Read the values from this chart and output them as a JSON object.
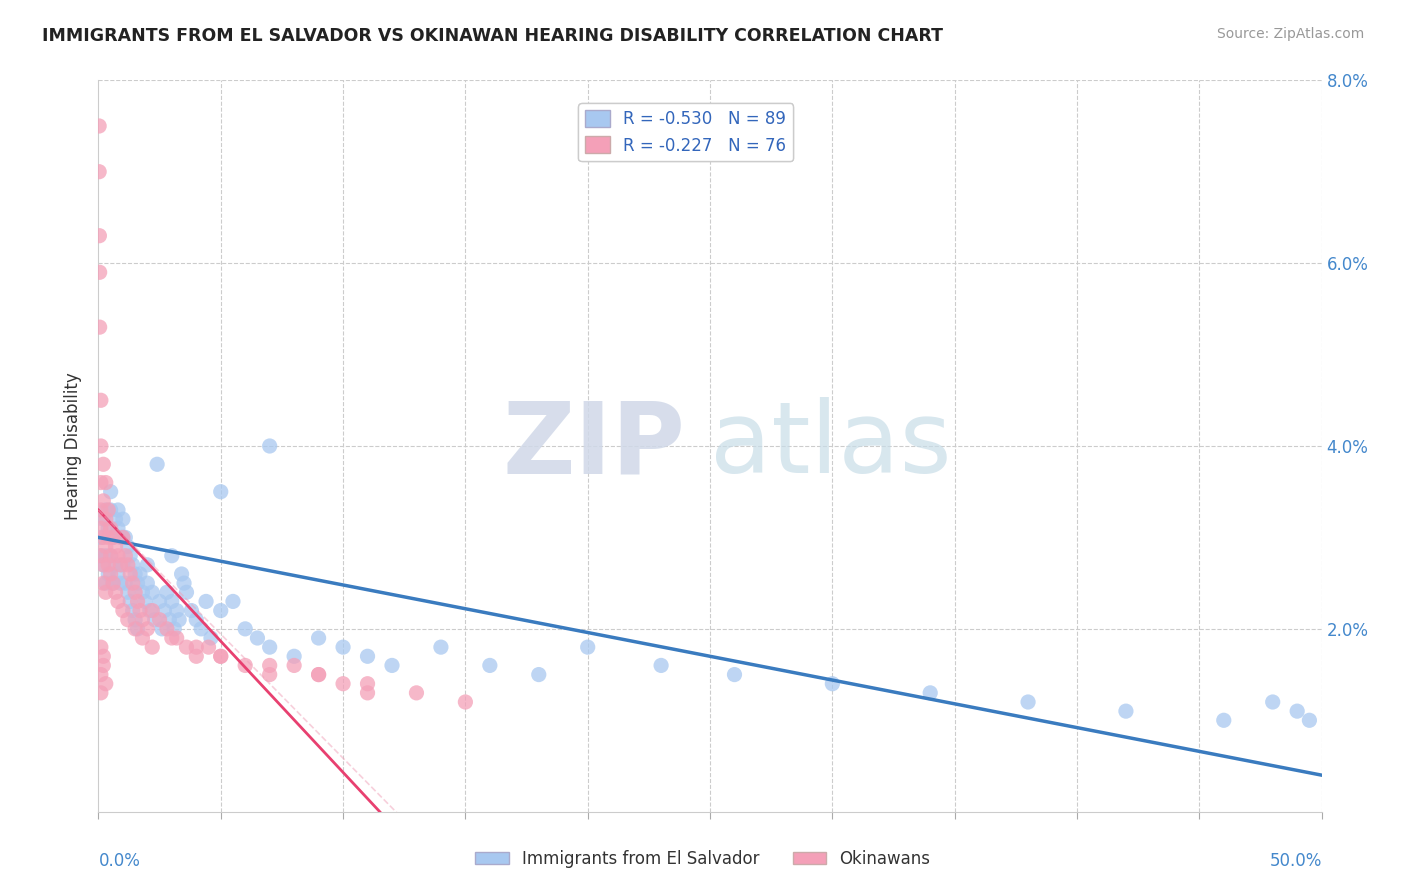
{
  "title": "IMMIGRANTS FROM EL SALVADOR VS OKINAWAN HEARING DISABILITY CORRELATION CHART",
  "source": "Source: ZipAtlas.com",
  "ylabel": "Hearing Disability",
  "xmin": 0.0,
  "xmax": 0.5,
  "ymin": 0.0,
  "ymax": 0.08,
  "yticks": [
    0.0,
    0.02,
    0.04,
    0.06,
    0.08
  ],
  "yticklabels_right": [
    "",
    "2.0%",
    "4.0%",
    "6.0%",
    "8.0%"
  ],
  "legend1_label": "R = -0.530   N = 89",
  "legend2_label": "R = -0.227   N = 76",
  "legend_bottom1": "Immigrants from El Salvador",
  "legend_bottom2": "Okinawans",
  "color_blue": "#a8c8f0",
  "color_pink": "#f4a0b8",
  "line_color_blue": "#3a7bbf",
  "line_color_pink": "#e84070",
  "line_color_pink_dashed": "#f0a0b8",
  "watermark_zip": "ZIP",
  "watermark_atlas": "atlas",
  "blue_scatter_x": [
    0.001,
    0.001,
    0.002,
    0.002,
    0.003,
    0.003,
    0.003,
    0.004,
    0.004,
    0.005,
    0.005,
    0.005,
    0.006,
    0.006,
    0.007,
    0.007,
    0.008,
    0.008,
    0.009,
    0.009,
    0.01,
    0.01,
    0.011,
    0.011,
    0.012,
    0.012,
    0.013,
    0.013,
    0.014,
    0.014,
    0.015,
    0.015,
    0.016,
    0.016,
    0.017,
    0.018,
    0.019,
    0.02,
    0.021,
    0.022,
    0.023,
    0.024,
    0.025,
    0.026,
    0.027,
    0.028,
    0.029,
    0.03,
    0.031,
    0.032,
    0.033,
    0.034,
    0.035,
    0.036,
    0.038,
    0.04,
    0.042,
    0.044,
    0.046,
    0.05,
    0.055,
    0.06,
    0.065,
    0.07,
    0.08,
    0.09,
    0.1,
    0.11,
    0.12,
    0.14,
    0.16,
    0.18,
    0.2,
    0.23,
    0.26,
    0.3,
    0.34,
    0.38,
    0.42,
    0.46,
    0.48,
    0.49,
    0.495,
    0.07,
    0.05,
    0.03,
    0.02,
    0.01,
    0.008
  ],
  "blue_scatter_y": [
    0.03,
    0.028,
    0.032,
    0.027,
    0.033,
    0.028,
    0.025,
    0.031,
    0.026,
    0.033,
    0.028,
    0.035,
    0.03,
    0.025,
    0.032,
    0.027,
    0.031,
    0.026,
    0.03,
    0.025,
    0.032,
    0.027,
    0.03,
    0.025,
    0.029,
    0.024,
    0.028,
    0.023,
    0.027,
    0.022,
    0.026,
    0.021,
    0.025,
    0.02,
    0.026,
    0.024,
    0.023,
    0.025,
    0.022,
    0.024,
    0.021,
    0.038,
    0.023,
    0.02,
    0.022,
    0.024,
    0.021,
    0.023,
    0.02,
    0.022,
    0.021,
    0.026,
    0.025,
    0.024,
    0.022,
    0.021,
    0.02,
    0.023,
    0.019,
    0.022,
    0.023,
    0.02,
    0.019,
    0.018,
    0.017,
    0.019,
    0.018,
    0.017,
    0.016,
    0.018,
    0.016,
    0.015,
    0.018,
    0.016,
    0.015,
    0.014,
    0.013,
    0.012,
    0.011,
    0.01,
    0.012,
    0.011,
    0.01,
    0.04,
    0.035,
    0.028,
    0.027,
    0.03,
    0.033
  ],
  "pink_scatter_x": [
    0.0003,
    0.0003,
    0.0004,
    0.0005,
    0.0005,
    0.001,
    0.001,
    0.001,
    0.001,
    0.001,
    0.001,
    0.002,
    0.002,
    0.002,
    0.002,
    0.003,
    0.003,
    0.003,
    0.004,
    0.004,
    0.005,
    0.005,
    0.006,
    0.007,
    0.008,
    0.009,
    0.01,
    0.011,
    0.012,
    0.013,
    0.014,
    0.015,
    0.016,
    0.017,
    0.018,
    0.02,
    0.022,
    0.025,
    0.028,
    0.032,
    0.036,
    0.04,
    0.045,
    0.05,
    0.06,
    0.07,
    0.08,
    0.09,
    0.1,
    0.11,
    0.002,
    0.003,
    0.004,
    0.005,
    0.006,
    0.007,
    0.008,
    0.01,
    0.012,
    0.015,
    0.018,
    0.022,
    0.03,
    0.04,
    0.05,
    0.07,
    0.09,
    0.11,
    0.13,
    0.15,
    0.001,
    0.001,
    0.002,
    0.003,
    0.002,
    0.001
  ],
  "pink_scatter_y": [
    0.075,
    0.07,
    0.063,
    0.059,
    0.053,
    0.045,
    0.04,
    0.036,
    0.033,
    0.031,
    0.028,
    0.038,
    0.034,
    0.03,
    0.027,
    0.036,
    0.032,
    0.029,
    0.033,
    0.03,
    0.031,
    0.028,
    0.03,
    0.029,
    0.028,
    0.027,
    0.03,
    0.028,
    0.027,
    0.026,
    0.025,
    0.024,
    0.023,
    0.022,
    0.021,
    0.02,
    0.022,
    0.021,
    0.02,
    0.019,
    0.018,
    0.017,
    0.018,
    0.017,
    0.016,
    0.015,
    0.016,
    0.015,
    0.014,
    0.013,
    0.025,
    0.024,
    0.027,
    0.026,
    0.025,
    0.024,
    0.023,
    0.022,
    0.021,
    0.02,
    0.019,
    0.018,
    0.019,
    0.018,
    0.017,
    0.016,
    0.015,
    0.014,
    0.013,
    0.012,
    0.015,
    0.018,
    0.016,
    0.014,
    0.017,
    0.013
  ],
  "blue_trend_x": [
    0.0,
    0.5
  ],
  "blue_trend_y": [
    0.03,
    0.004
  ],
  "pink_trend_x": [
    0.0,
    0.115
  ],
  "pink_trend_y": [
    0.033,
    0.0
  ]
}
